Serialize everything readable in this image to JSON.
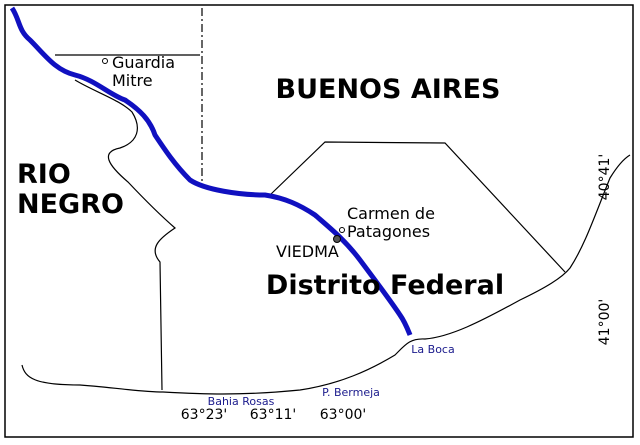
{
  "regions": [
    {
      "lines": [
        "BUENOS AIRES"
      ]
    },
    {
      "lines": [
        "RIO",
        "NEGRO"
      ]
    },
    {
      "lines": [
        "Distrito Federal"
      ]
    }
  ],
  "places": [
    {
      "lines": [
        "Guardia",
        "Mitre"
      ]
    },
    {
      "lines": [
        "Carmen de",
        "Patagones"
      ]
    },
    {
      "lines": [
        "VIEDMA"
      ]
    }
  ],
  "coast_labels": [
    "La Boca",
    "Bahia Rosas",
    "P. Bermeja"
  ],
  "longitude_ticks": [
    "63°23'",
    "63°11'",
    "63°00'"
  ],
  "latitude_ticks": [
    "40°41'",
    "41°00'"
  ]
}
